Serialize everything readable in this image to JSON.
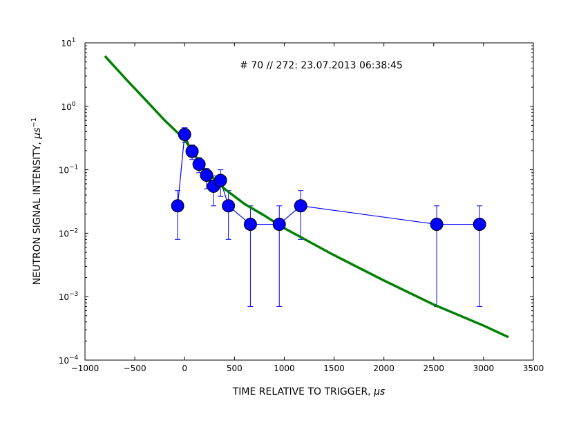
{
  "chart_data": {
    "type": "scatter",
    "title": "",
    "annotation": "# 70 // 272: 23.07.2013 06:38:45",
    "xlabel": "TIME RELATIVE TO TRIGGER, ",
    "xlabel_unit": "μs",
    "ylabel": "NEUTRON SIGNAL INTENSITY, ",
    "ylabel_unit": "μs",
    "ylabel_unit_exp": "−1",
    "xlim": [
      -1000,
      3500
    ],
    "ylim": [
      0.0001,
      10
    ],
    "yscale": "log",
    "grid": false,
    "x_ticks": [
      {
        "value": -1000,
        "label": "−1000"
      },
      {
        "value": -500,
        "label": "−500"
      },
      {
        "value": 0,
        "label": "0"
      },
      {
        "value": 500,
        "label": "500"
      },
      {
        "value": 1000,
        "label": "1000"
      },
      {
        "value": 1500,
        "label": "1500"
      },
      {
        "value": 2000,
        "label": "2000"
      },
      {
        "value": 2500,
        "label": "2500"
      },
      {
        "value": 3000,
        "label": "3000"
      },
      {
        "value": 3500,
        "label": "3500"
      }
    ],
    "y_ticks": [
      {
        "value": 10,
        "base": "10",
        "exp": "1"
      },
      {
        "value": 1,
        "base": "10",
        "exp": "0"
      },
      {
        "value": 0.1,
        "base": "10",
        "exp": "−1"
      },
      {
        "value": 0.01,
        "base": "10",
        "exp": "−2"
      },
      {
        "value": 0.001,
        "base": "10",
        "exp": "−3"
      },
      {
        "value": 0.0001,
        "base": "10",
        "exp": "−4"
      }
    ],
    "series": [
      {
        "style": "markers-with-errorbars",
        "color": "#0000ff",
        "points": [
          {
            "x": -70,
            "y": 0.027,
            "ylo": 0.008,
            "yhi": 0.047
          },
          {
            "x": 0,
            "y": 0.36,
            "ylo": 0.27,
            "yhi": 0.46
          },
          {
            "x": 75,
            "y": 0.195,
            "ylo": 0.145,
            "yhi": 0.245
          },
          {
            "x": 145,
            "y": 0.122,
            "ylo": 0.09,
            "yhi": 0.155
          },
          {
            "x": 220,
            "y": 0.082,
            "ylo": 0.05,
            "yhi": 0.105
          },
          {
            "x": 290,
            "y": 0.055,
            "ylo": 0.027,
            "yhi": 0.08
          },
          {
            "x": 360,
            "y": 0.068,
            "ylo": 0.038,
            "yhi": 0.1
          },
          {
            "x": 440,
            "y": 0.027,
            "ylo": 0.008,
            "yhi": 0.047
          },
          {
            "x": 660,
            "y": 0.0138,
            "ylo": 0.0007,
            "yhi": 0.027
          },
          {
            "x": 950,
            "y": 0.0138,
            "ylo": 0.0007,
            "yhi": 0.027
          },
          {
            "x": 1165,
            "y": 0.027,
            "ylo": 0.008,
            "yhi": 0.047
          },
          {
            "x": 2530,
            "y": 0.0138,
            "ylo": 0.0007,
            "yhi": 0.027
          },
          {
            "x": 2960,
            "y": 0.0138,
            "ylo": 0.0007,
            "yhi": 0.027
          }
        ]
      },
      {
        "style": "line",
        "color": "#008000",
        "x": [
          -800,
          -600,
          -400,
          -200,
          0,
          200,
          400,
          600,
          800,
          1000,
          1500,
          2000,
          2500,
          3000,
          3250
        ],
        "y": [
          6.2,
          2.8,
          1.3,
          0.6,
          0.3,
          0.1,
          0.05,
          0.029,
          0.019,
          0.012,
          0.0045,
          0.0018,
          0.00075,
          0.00035,
          0.00023
        ]
      }
    ]
  }
}
